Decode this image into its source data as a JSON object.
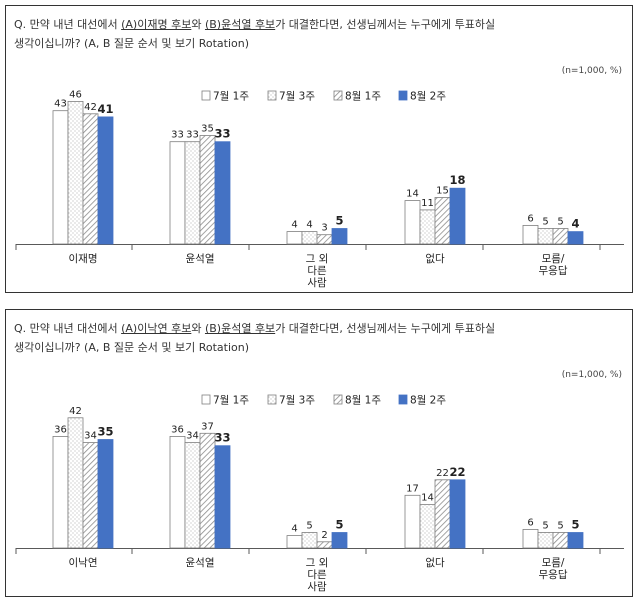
{
  "panels": [
    {
      "question": {
        "prefix": "Q. 만약 내년 대선에서 ",
        "cand_a": "(A)이재명 후보",
        "mid": "와 ",
        "cand_b": "(B)윤석열 후보",
        "suffix": "가 대결한다면, 선생님께서는 누구에게 투표하실",
        "line2": "생각이십니까? (A, B 질문 순서 및 보기 Rotation)"
      },
      "unit": "(n=1,000, %)"
    },
    {
      "question": {
        "prefix": "Q. 만약 내년 대선에서 ",
        "cand_a": "(A)이낙연 후보",
        "mid": "와 ",
        "cand_b": "(B)윤석열 후보",
        "suffix": "가 대결한다면, 선생님께서는 누구에게 투표하실",
        "line2": "생각이십니까? (A, B 질문 순서 및 보기 Rotation)"
      },
      "unit": "(n=1,000, %)"
    }
  ],
  "colors": {
    "s1": "#ffffff",
    "s2": "#ffffff",
    "s3": "#d9d9d9",
    "s4": "#4472c4",
    "stroke": "#7f7f7f"
  },
  "chart_data": [
    {
      "type": "bar",
      "title": "",
      "categories": [
        "이재명",
        "윤석열",
        "그 외\n다른\n사람",
        "없다",
        "모름/\n무응답"
      ],
      "series": [
        {
          "name": "7월 1주",
          "values": [
            43,
            33,
            4,
            14,
            6
          ]
        },
        {
          "name": "7월 3주",
          "values": [
            46,
            33,
            4,
            11,
            5
          ]
        },
        {
          "name": "8월 1주",
          "values": [
            42,
            35,
            3,
            15,
            5
          ]
        },
        {
          "name": "8월 2주",
          "values": [
            41,
            33,
            5,
            18,
            4
          ]
        }
      ],
      "ylim": [
        0,
        50
      ],
      "grid": false,
      "legend": "top-center"
    },
    {
      "type": "bar",
      "title": "",
      "categories": [
        "이낙연",
        "윤석열",
        "그 외\n다른\n사람",
        "없다",
        "모름/\n무응답"
      ],
      "series": [
        {
          "name": "7월 1주",
          "values": [
            36,
            36,
            4,
            17,
            6
          ]
        },
        {
          "name": "7월 3주",
          "values": [
            42,
            34,
            5,
            14,
            5
          ]
        },
        {
          "name": "8월 1주",
          "values": [
            34,
            37,
            2,
            22,
            5
          ]
        },
        {
          "name": "8월 2주",
          "values": [
            35,
            33,
            5,
            22,
            5
          ]
        }
      ],
      "ylim": [
        0,
        50
      ],
      "grid": false,
      "legend": "top-center"
    }
  ]
}
